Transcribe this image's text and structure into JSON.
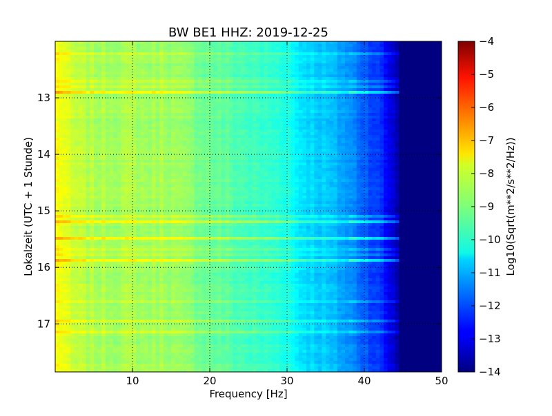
{
  "chart_data": {
    "type": "heatmap",
    "title": "BW BE1 HHZ: 2019-12-25",
    "xlabel": "Frequency [Hz]",
    "ylabel": "Lokalzeit (UTC + 1 Stunde)",
    "xlim": [
      0,
      50
    ],
    "ylim": [
      17.85,
      12.0
    ],
    "y_inverted": true,
    "x_ticks": [
      10,
      20,
      30,
      40,
      50
    ],
    "y_ticks": [
      13,
      14,
      15,
      16,
      17
    ],
    "grid": true,
    "colormap": "jet",
    "colorbar": {
      "label": "Log10(Sqrt(m**2/s**2/Hz))",
      "range": [
        -14,
        -4
      ],
      "ticks": [
        -4,
        -5,
        -6,
        -7,
        -8,
        -9,
        -10,
        -11,
        -12,
        -13,
        -14
      ]
    },
    "spectral_profile": {
      "frequency_hz": [
        0.5,
        1,
        2,
        4,
        6,
        8,
        10,
        12,
        14,
        16,
        20,
        25,
        28,
        30,
        31,
        32,
        35,
        38,
        40,
        42,
        43,
        44,
        45,
        50
      ],
      "log10_amplitude": [
        -7.8,
        -7.9,
        -8.3,
        -8.5,
        -8.6,
        -8.6,
        -8.6,
        -8.7,
        -8.6,
        -8.8,
        -9.2,
        -9.6,
        -9.8,
        -9.9,
        -10.3,
        -10.5,
        -10.8,
        -11.3,
        -11.8,
        -12.3,
        -12.8,
        -13.3,
        -14,
        -14
      ]
    },
    "narrowband_events_hour": [
      12.9,
      15.2,
      15.5,
      15.88
    ],
    "sporadic_events_hour": [
      12.2,
      12.7,
      12.8,
      15.1,
      15.7,
      15.78,
      16.6,
      16.95,
      17.15
    ]
  }
}
